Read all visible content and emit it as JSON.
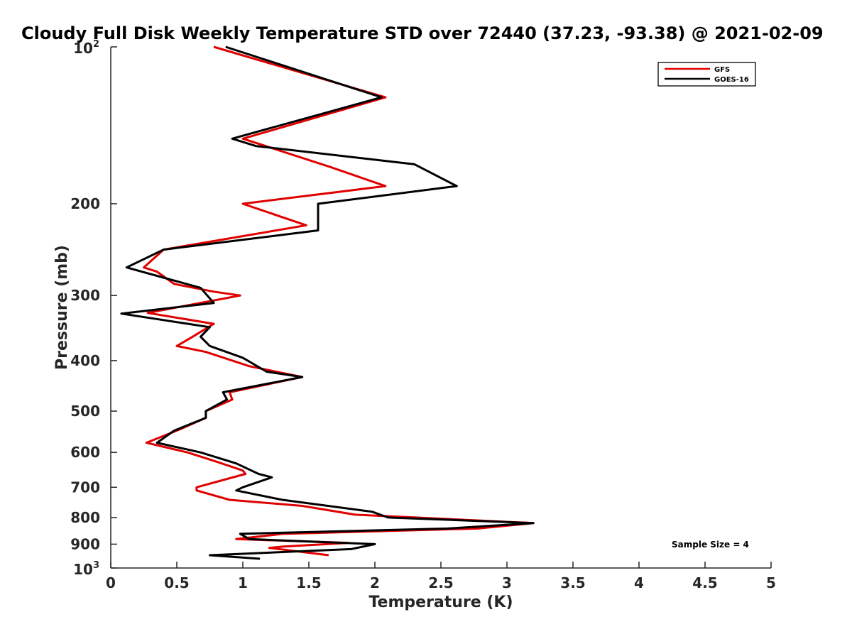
{
  "chart_data": {
    "type": "line",
    "title": "Cloudy Full Disk Weekly Temperature STD over 72440 (37.23, -93.38) @ 2021-02-09",
    "xlabel": "Temperature (K)",
    "ylabel": "Pressure (mb)",
    "xlim": [
      0,
      5
    ],
    "ylim": [
      100,
      1000
    ],
    "yscale": "log",
    "y_reversed": true,
    "xticks": [
      0,
      0.5,
      1,
      1.5,
      2,
      2.5,
      3,
      3.5,
      4,
      4.5,
      5
    ],
    "xtick_labels": [
      "0",
      "0.5",
      "1",
      "1.5",
      "2",
      "2.5",
      "3",
      "3.5",
      "4",
      "4.5",
      "5"
    ],
    "yticks": [
      {
        "value": 100,
        "base": "10",
        "exp": "2"
      },
      {
        "value": 200,
        "label": "200"
      },
      {
        "value": 300,
        "label": "300"
      },
      {
        "value": 400,
        "label": "400"
      },
      {
        "value": 500,
        "label": "500"
      },
      {
        "value": 600,
        "label": "600"
      },
      {
        "value": 700,
        "label": "700"
      },
      {
        "value": 800,
        "label": "800"
      },
      {
        "value": 900,
        "label": "900"
      },
      {
        "value": 1000,
        "base": "10",
        "exp": "3"
      }
    ],
    "legend_position": "top-right",
    "grid": false,
    "annotation": "Sample Size = 4",
    "series": [
      {
        "name": "GFS",
        "color": "#e00000",
        "points": [
          [
            0.78,
            100
          ],
          [
            2.08,
            125
          ],
          [
            1.0,
            150
          ],
          [
            1.66,
            170
          ],
          [
            2.08,
            185
          ],
          [
            1.0,
            200
          ],
          [
            1.48,
            220
          ],
          [
            0.4,
            245
          ],
          [
            0.25,
            265
          ],
          [
            0.35,
            270
          ],
          [
            0.48,
            285
          ],
          [
            0.78,
            295
          ],
          [
            0.98,
            300
          ],
          [
            0.28,
            324
          ],
          [
            0.78,
            340
          ],
          [
            0.62,
            360
          ],
          [
            0.5,
            375
          ],
          [
            0.72,
            385
          ],
          [
            1.05,
            410
          ],
          [
            1.45,
            430
          ],
          [
            0.9,
            460
          ],
          [
            0.92,
            475
          ],
          [
            0.72,
            500
          ],
          [
            0.72,
            515
          ],
          [
            0.5,
            545
          ],
          [
            0.27,
            575
          ],
          [
            0.58,
            600
          ],
          [
            0.8,
            625
          ],
          [
            1.0,
            650
          ],
          [
            1.02,
            660
          ],
          [
            0.65,
            700
          ],
          [
            0.65,
            710
          ],
          [
            0.9,
            740
          ],
          [
            1.45,
            760
          ],
          [
            1.85,
            790
          ],
          [
            3.2,
            820
          ],
          [
            2.78,
            840
          ],
          [
            1.3,
            860
          ],
          [
            0.95,
            880
          ],
          [
            1.8,
            895
          ],
          [
            1.3,
            910
          ],
          [
            1.2,
            915
          ],
          [
            1.65,
            945
          ]
        ]
      },
      {
        "name": "GOES-16",
        "color": "#000000",
        "points": [
          [
            0.87,
            100
          ],
          [
            2.05,
            125
          ],
          [
            0.92,
            150
          ],
          [
            1.1,
            155
          ],
          [
            2.3,
            168
          ],
          [
            2.62,
            185
          ],
          [
            1.57,
            200
          ],
          [
            1.57,
            225
          ],
          [
            0.4,
            245
          ],
          [
            0.12,
            265
          ],
          [
            0.35,
            275
          ],
          [
            0.68,
            290
          ],
          [
            0.78,
            310
          ],
          [
            0.08,
            325
          ],
          [
            0.75,
            345
          ],
          [
            0.68,
            360
          ],
          [
            0.75,
            375
          ],
          [
            1.0,
            395
          ],
          [
            1.18,
            420
          ],
          [
            1.45,
            430
          ],
          [
            0.85,
            460
          ],
          [
            0.88,
            475
          ],
          [
            0.72,
            500
          ],
          [
            0.72,
            515
          ],
          [
            0.48,
            545
          ],
          [
            0.35,
            575
          ],
          [
            0.68,
            600
          ],
          [
            0.95,
            630
          ],
          [
            1.12,
            660
          ],
          [
            1.22,
            670
          ],
          [
            1.0,
            700
          ],
          [
            0.95,
            710
          ],
          [
            1.3,
            740
          ],
          [
            1.98,
            780
          ],
          [
            2.1,
            800
          ],
          [
            3.2,
            820
          ],
          [
            2.55,
            840
          ],
          [
            0.98,
            860
          ],
          [
            1.05,
            880
          ],
          [
            2.0,
            900
          ],
          [
            1.82,
            920
          ],
          [
            0.75,
            945
          ],
          [
            1.13,
            960
          ]
        ]
      }
    ]
  }
}
